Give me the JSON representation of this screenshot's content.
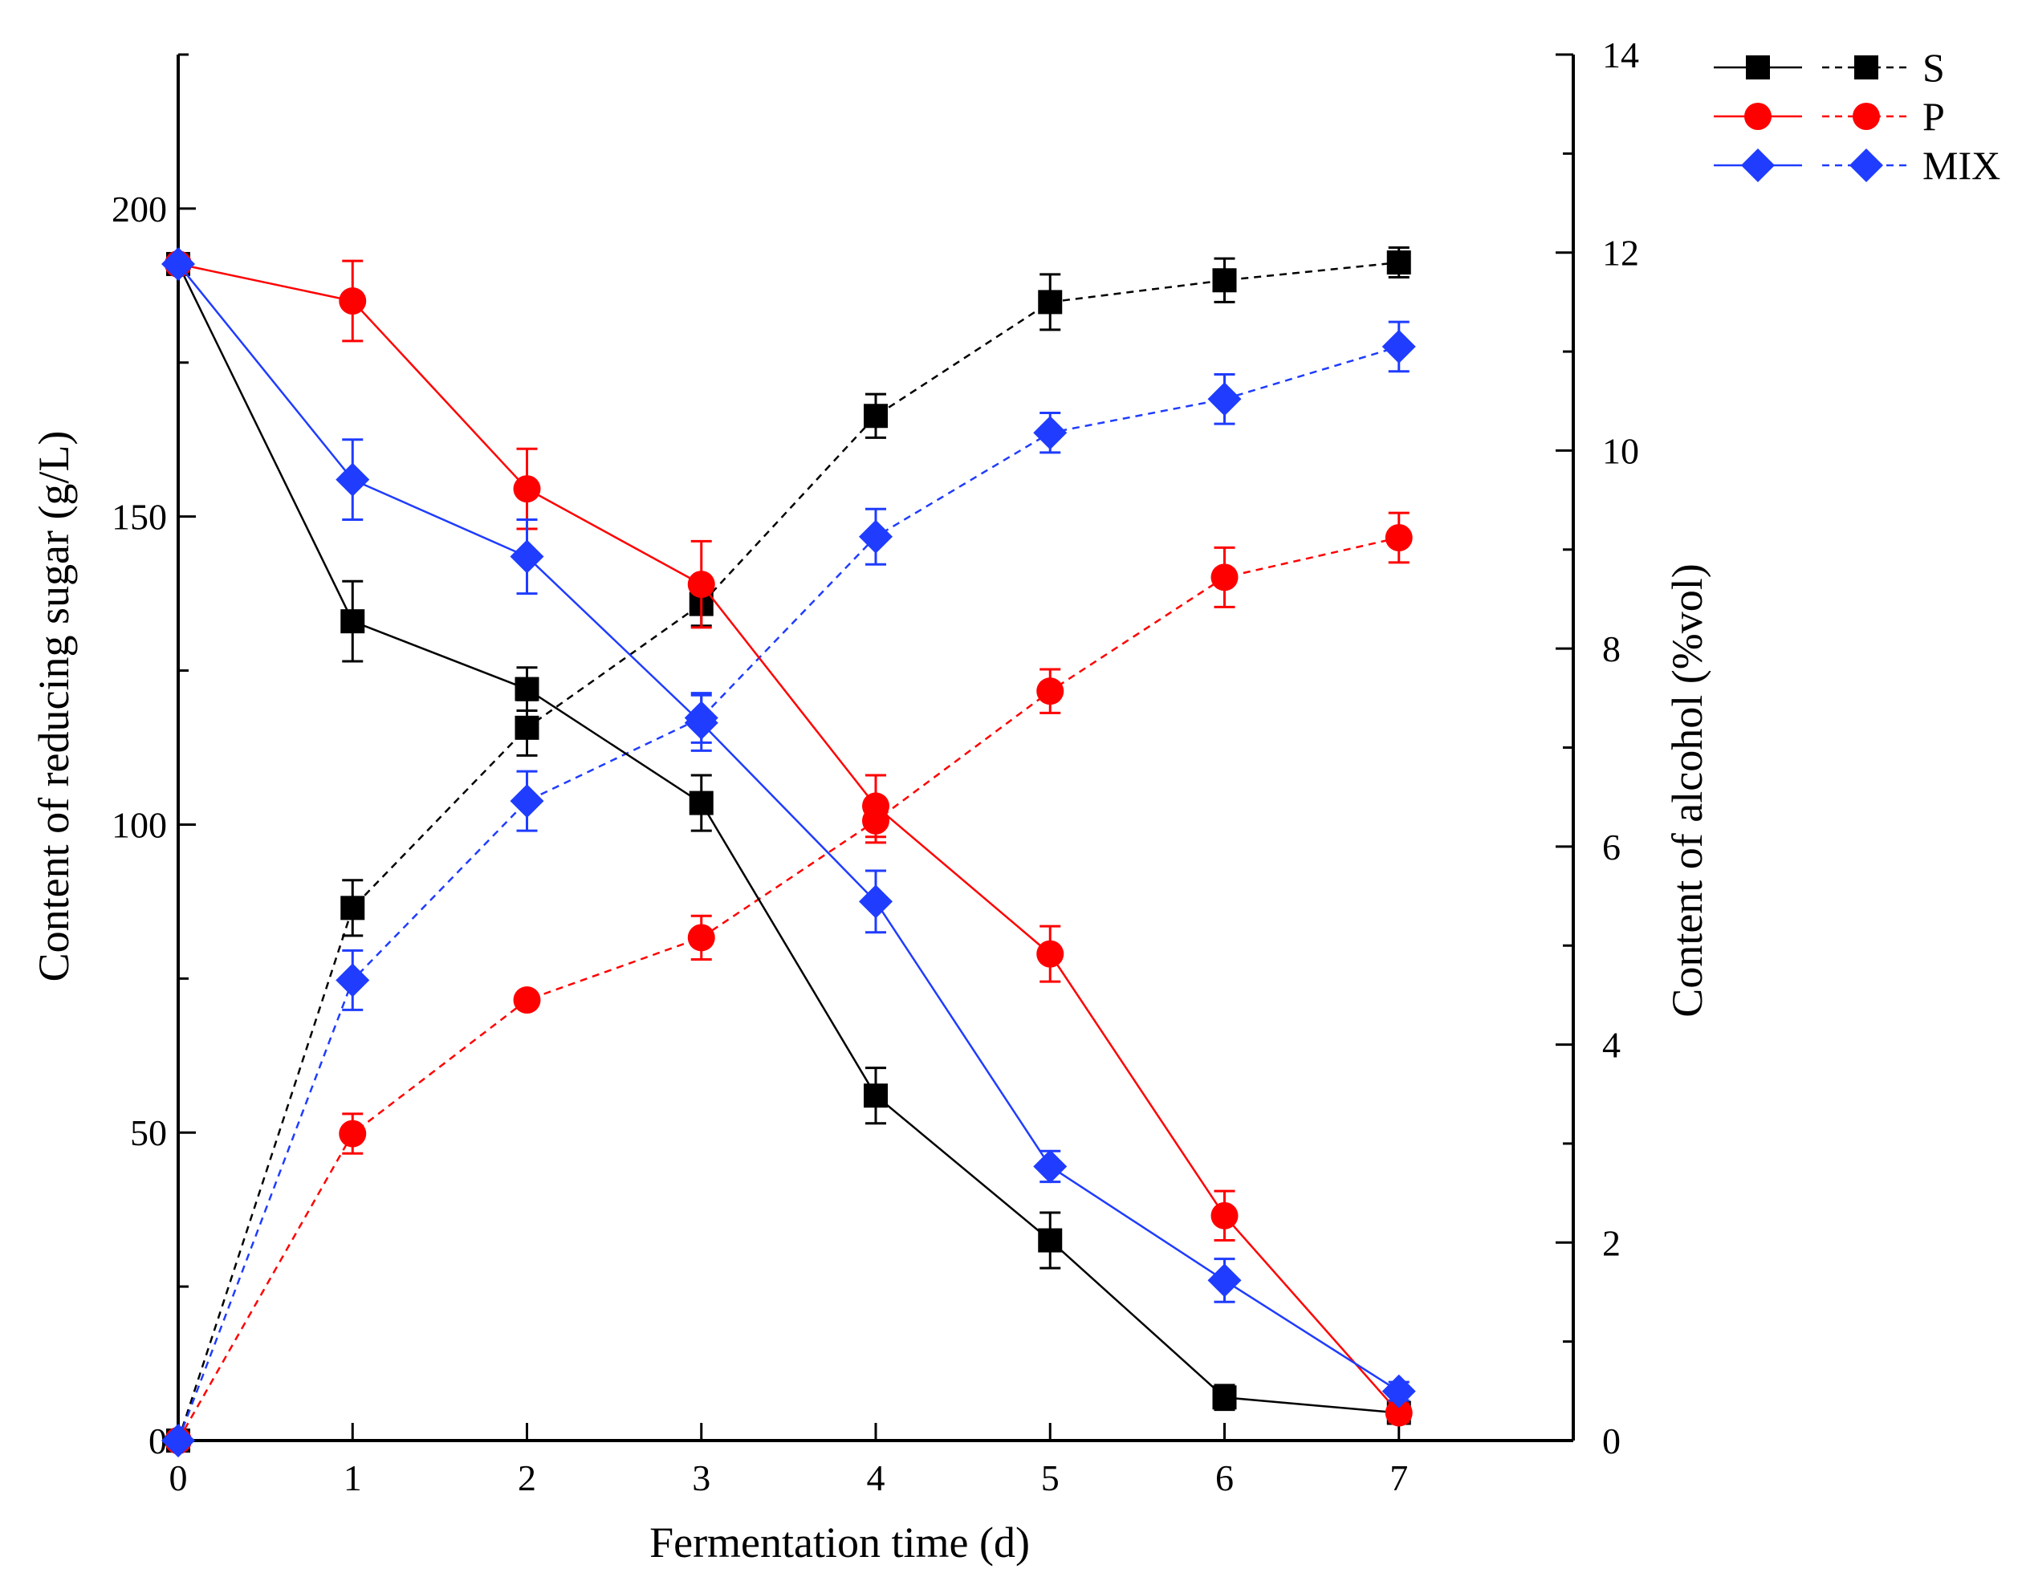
{
  "chart_data": {
    "type": "line",
    "title": "",
    "xlabel": "Fermentation time (d)",
    "ylabel_left": "Content of reducing sugar (g/L)",
    "ylabel_right": "Content of alcohol (%vol)",
    "xlim": [
      0,
      8
    ],
    "ylim_left": [
      0,
      225
    ],
    "ylim_right": [
      0,
      14
    ],
    "x_ticks": [
      "0",
      "1",
      "2",
      "3",
      "4",
      "5",
      "6",
      "7"
    ],
    "y_left_ticks": [
      "0",
      "50",
      "100",
      "150",
      "200"
    ],
    "y_right_ticks": [
      "0",
      "2",
      "4",
      "6",
      "8",
      "10",
      "12",
      "14"
    ],
    "x": [
      0,
      1,
      2,
      3,
      4,
      5,
      6,
      7
    ],
    "legend_position": "top-right",
    "legend": [
      "S",
      "P",
      "MIX"
    ],
    "series": [
      {
        "name": "S",
        "color": "#000000",
        "marker": "square",
        "sugar": [
          191,
          133,
          122,
          103.5,
          56,
          32.5,
          7,
          4.5
        ],
        "sugar_err": [
          0,
          6.5,
          3.5,
          4.5,
          4.5,
          4.5,
          2,
          1.5
        ],
        "alcohol": [
          0,
          5.38,
          7.2,
          8.45,
          10.35,
          11.5,
          11.72,
          11.9
        ],
        "alcohol_err": [
          0,
          0.28,
          0.28,
          0.22,
          0.22,
          0.28,
          0.22,
          0.15
        ]
      },
      {
        "name": "P",
        "color": "#ff0000",
        "marker": "circle",
        "sugar": [
          191,
          185,
          154.5,
          139,
          103,
          79,
          36.5,
          4.5
        ],
        "sugar_err": [
          0,
          6.5,
          6.5,
          7,
          5,
          4.5,
          4,
          1.5
        ],
        "alcohol": [
          0,
          3.1,
          4.45,
          5.08,
          6.26,
          7.57,
          8.72,
          9.12
        ],
        "alcohol_err": [
          0,
          0.2,
          0,
          0.22,
          0.22,
          0.22,
          0.3,
          0.25
        ]
      },
      {
        "name": "MIX",
        "color": "#1f3cff",
        "marker": "diamond",
        "sugar": [
          191,
          156,
          143.5,
          116.5,
          87.5,
          44.5,
          26,
          8
        ],
        "sugar_err": [
          0,
          6.5,
          6,
          4.5,
          5,
          2.5,
          3.5,
          1.5
        ],
        "alcohol": [
          0,
          4.65,
          6.46,
          7.3,
          9.13,
          10.18,
          10.52,
          11.05
        ],
        "alcohol_err": [
          0,
          0.3,
          0.3,
          0.25,
          0.28,
          0.2,
          0.25,
          0.25
        ]
      }
    ]
  }
}
